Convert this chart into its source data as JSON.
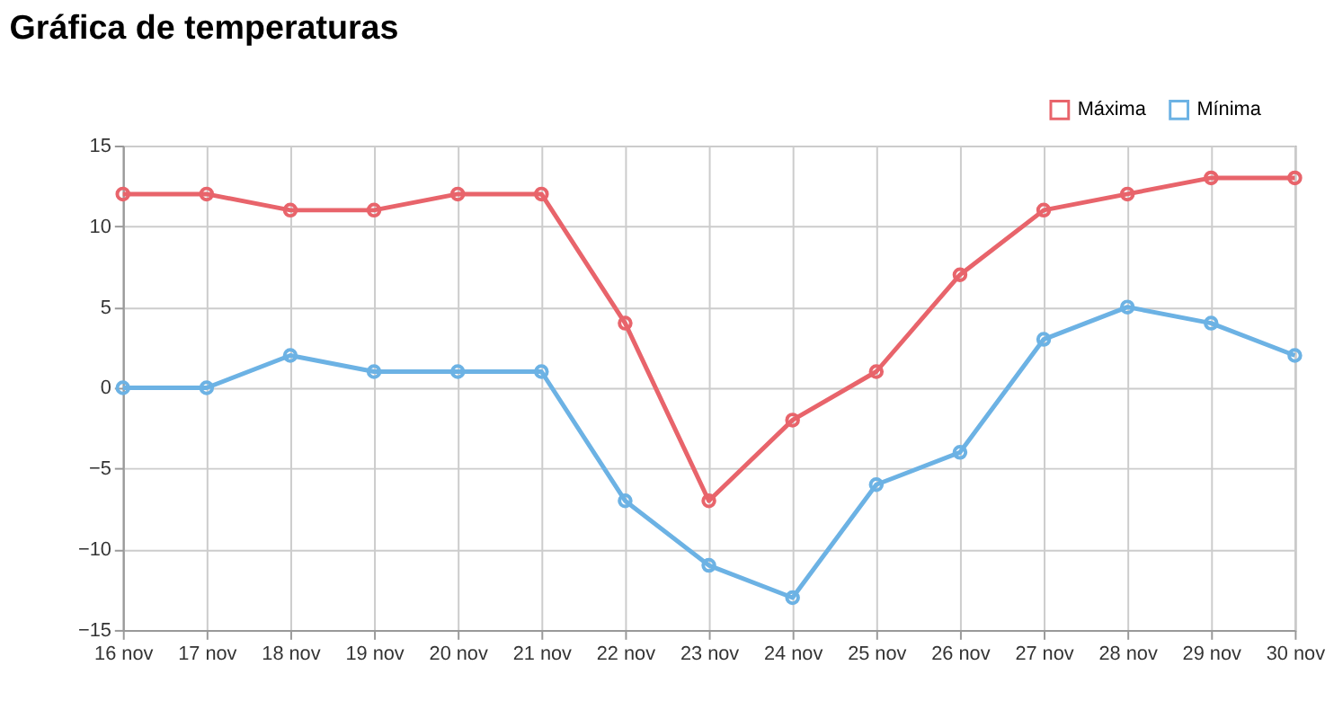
{
  "chart_data": {
    "type": "line",
    "title": "Gráfica de temperaturas",
    "categories": [
      "16 nov",
      "17 nov",
      "18 nov",
      "19 nov",
      "20 nov",
      "21 nov",
      "22 nov",
      "23 nov",
      "24 nov",
      "25 nov",
      "26 nov",
      "27 nov",
      "28 nov",
      "29 nov",
      "30 nov"
    ],
    "series": [
      {
        "name": "Máxima",
        "color": "#e8646b",
        "values": [
          12,
          12,
          11,
          11,
          12,
          12,
          4,
          -7,
          -2,
          1,
          7,
          11,
          12,
          13,
          13
        ]
      },
      {
        "name": "Mínima",
        "color": "#6cb2e4",
        "values": [
          0,
          0,
          2,
          1,
          1,
          1,
          -7,
          -11,
          -13,
          -6,
          -4,
          3,
          5,
          4,
          2
        ]
      }
    ],
    "ylim": [
      -15,
      15
    ],
    "yticks": [
      -15,
      -10,
      -5,
      0,
      5,
      10,
      15
    ],
    "grid": true,
    "legend": "top right",
    "marker": "circle",
    "line_style": "solid"
  }
}
